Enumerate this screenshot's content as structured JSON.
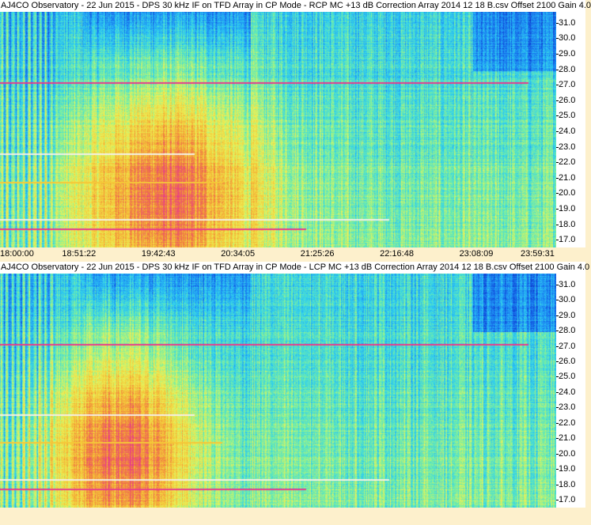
{
  "chart_data": [
    {
      "type": "heatmap",
      "title": "AJ4CO Observatory - 22 Jun 2015 - DPS 30 kHz IF on TFD Array in CP Mode - RCP  MC +13 dB  Correction Array 2014 12 18 B.csv  Offset 2100   Gain 4.0",
      "polarization": "RCP",
      "x_ticks": [
        "18:00:00",
        "18:51:22",
        "19:42:43",
        "20:34:05",
        "21:25:26",
        "22:16:48",
        "23:08:09",
        "23:59:31"
      ],
      "y_ticks": [
        "31.0",
        "30.0",
        "29.0",
        "28.0",
        "27.0",
        "26.0",
        "25.0",
        "24.0",
        "23.0",
        "22.0",
        "21.0",
        "20.0",
        "19.0",
        "18.0",
        "17.0"
      ],
      "xlim": [
        "18:00:00",
        "23:59:31"
      ],
      "ylim": [
        16.5,
        31.7
      ],
      "grid": false,
      "colormap": [
        "#0a1e9a",
        "#1048d8",
        "#1d8cf5",
        "#2fd0f0",
        "#7af0a0",
        "#e8f25a",
        "#f5c838",
        "#f07a40",
        "#e83c8c"
      ]
    },
    {
      "type": "heatmap",
      "title": "AJ4CO Observatory - 22 Jun 2015 - DPS 30 kHz IF on TFD Array in CP Mode - LCP  MC +13 dB  Correction Array 2014 12 18 B.csv  Offset 2100   Gain 4.0",
      "polarization": "LCP",
      "y_ticks": [
        "31.0",
        "30.0",
        "29.0",
        "28.0",
        "27.0",
        "26.0",
        "25.0",
        "24.0",
        "23.0",
        "22.0",
        "21.0",
        "20.0",
        "19.0",
        "18.0",
        "17.0"
      ],
      "ylim": [
        16.5,
        31.7
      ],
      "grid": false
    }
  ]
}
